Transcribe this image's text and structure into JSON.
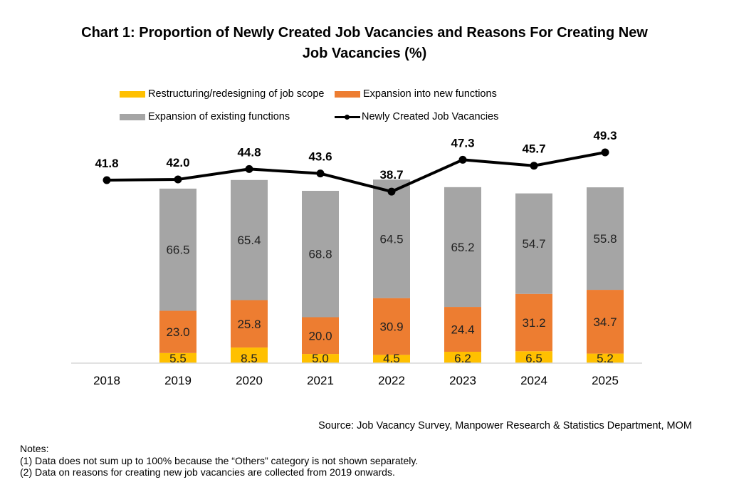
{
  "title": {
    "line1": "Chart 1: Proportion of Newly Created Job Vacancies and Reasons For Creating New",
    "line2": "Job Vacancies (%)"
  },
  "legend": [
    {
      "name": "Restructuring/redesigning of job scope",
      "color": "#FFC000",
      "kind": "bar"
    },
    {
      "name": "Expansion into new functions",
      "color": "#ED7D31",
      "kind": "bar"
    },
    {
      "name": "Expansion of existing functions",
      "color": "#A5A5A5",
      "kind": "bar"
    },
    {
      "name": "Newly Created Job Vacancies",
      "color": "#000000",
      "kind": "line"
    }
  ],
  "source": "Source: Job Vacancy Survey, Manpower Research & Statistics Department, MOM",
  "notes": [
    "Notes:",
    "(1) Data does not sum up to 100% because the “Others” category is not shown separately.",
    "(2) Data on reasons for creating new job vacancies are collected from 2019 onwards."
  ],
  "chart_data": {
    "type": "bar",
    "subtype": "stacked bar with line overlay",
    "title": "Chart 1: Proportion of Newly Created Job Vacancies and Reasons For Creating New Job Vacancies (%)",
    "xlabel": "",
    "ylabel": "",
    "categories": [
      "2018",
      "2019",
      "2020",
      "2021",
      "2022",
      "2023",
      "2024",
      "2025"
    ],
    "series": [
      {
        "name": "Restructuring/redesigning of job scope",
        "type": "bar",
        "color": "#FFC000",
        "values": [
          null,
          5.5,
          8.5,
          5.0,
          4.5,
          6.2,
          6.5,
          5.2
        ]
      },
      {
        "name": "Expansion into new functions",
        "type": "bar",
        "color": "#ED7D31",
        "values": [
          null,
          23.0,
          25.8,
          20.0,
          30.9,
          24.4,
          31.2,
          34.7
        ]
      },
      {
        "name": "Expansion of existing functions",
        "type": "bar",
        "color": "#A5A5A5",
        "values": [
          null,
          66.5,
          65.4,
          68.8,
          64.5,
          65.2,
          54.7,
          55.8
        ]
      },
      {
        "name": "Newly Created Job Vacancies",
        "type": "line",
        "color": "#000000",
        "values": [
          41.8,
          42.0,
          44.8,
          43.6,
          38.7,
          47.3,
          45.7,
          49.3
        ]
      }
    ],
    "bar_axis_range": [
      0,
      100
    ],
    "line_axis_range": [
      0,
      90
    ],
    "axes_visible": false,
    "grid": false,
    "legend_position": "top",
    "data_labels": true
  }
}
